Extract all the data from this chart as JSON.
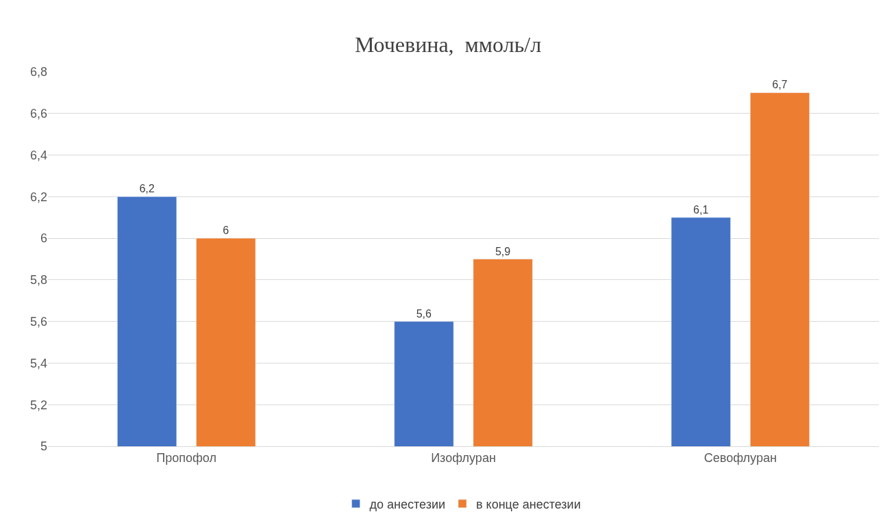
{
  "chart_data": {
    "type": "bar",
    "title": "Мочевина,  ммоль/л",
    "categories": [
      "Пропофол",
      "Изофлуран",
      "Севофлуран"
    ],
    "series": [
      {
        "name": "до анестезии",
        "color": "#4472c4",
        "values": [
          6.2,
          5.6,
          6.1
        ],
        "value_labels": [
          "6,2",
          "5,6",
          "6,1"
        ]
      },
      {
        "name": "в конце анестезии",
        "color": "#ed7d31",
        "values": [
          6.0,
          5.9,
          6.7
        ],
        "value_labels": [
          "6",
          "5,9",
          "6,7"
        ]
      }
    ],
    "ylim": [
      5,
      6.8
    ],
    "yticks": [
      5,
      {
        "value": 5.2,
        "label": "5,2"
      },
      {
        "value": 5.4,
        "label": "5,4"
      },
      {
        "value": 5.6,
        "label": "5,6"
      },
      {
        "value": 5.8,
        "label": "5,8"
      },
      6,
      {
        "value": 6.2,
        "label": "6,2"
      },
      {
        "value": 6.4,
        "label": "6,4"
      },
      {
        "value": 6.6,
        "label": "6,6"
      },
      {
        "value": 6.8,
        "label": "6,8"
      }
    ],
    "grid": "y",
    "legend": "bottom"
  }
}
